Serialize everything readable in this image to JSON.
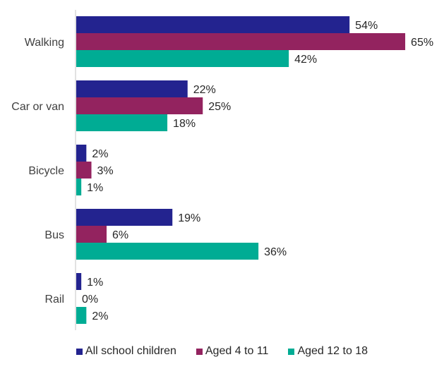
{
  "chart_data": {
    "type": "bar",
    "orientation": "horizontal",
    "title": "",
    "xlabel": "",
    "ylabel": "",
    "xlim": [
      0,
      70
    ],
    "grid": false,
    "legend_position": "bottom",
    "categories": [
      "Walking",
      "Car or van",
      "Bicycle",
      "Bus",
      "Rail"
    ],
    "series": [
      {
        "name": "All school children",
        "color": "#23238F",
        "values": [
          54,
          22,
          2,
          19,
          1
        ],
        "labels": [
          "54%",
          "22%",
          "2%",
          "19%",
          "1%"
        ]
      },
      {
        "name": "Aged 4 to 11",
        "color": "#93235F",
        "values": [
          65,
          25,
          3,
          6,
          0
        ],
        "labels": [
          "65%",
          "25%",
          "3%",
          "6%",
          "0%"
        ]
      },
      {
        "name": "Aged 12 to 18",
        "color": "#00AC94",
        "values": [
          42,
          18,
          1,
          36,
          2
        ],
        "labels": [
          "42%",
          "18%",
          "1%",
          "36%",
          "2%"
        ]
      }
    ]
  }
}
